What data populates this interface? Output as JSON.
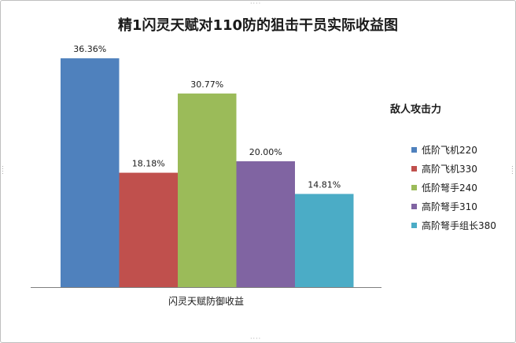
{
  "chart_data": {
    "type": "bar",
    "title": "精1闪灵天赋对110防的狙击干员实际收益图",
    "categories": [
      "闪灵天赋防御收益"
    ],
    "legend_title": "敌人攻击力",
    "legend_position": "right",
    "ylim": [
      0,
      40
    ],
    "grid": false,
    "series": [
      {
        "name": "低阶飞机220",
        "values": [
          36.36
        ],
        "label": "36.36%",
        "color": "#4F81BD"
      },
      {
        "name": "高阶飞机330",
        "values": [
          18.18
        ],
        "label": "18.18%",
        "color": "#C0504D"
      },
      {
        "name": "低阶弩手240",
        "values": [
          30.77
        ],
        "label": "30.77%",
        "color": "#9BBB59"
      },
      {
        "name": "高阶弩手310",
        "values": [
          20.0
        ],
        "label": "20.00%",
        "color": "#8064A2"
      },
      {
        "name": "高阶弩手组长380",
        "values": [
          14.81
        ],
        "label": "14.81%",
        "color": "#4BACC6"
      }
    ]
  }
}
